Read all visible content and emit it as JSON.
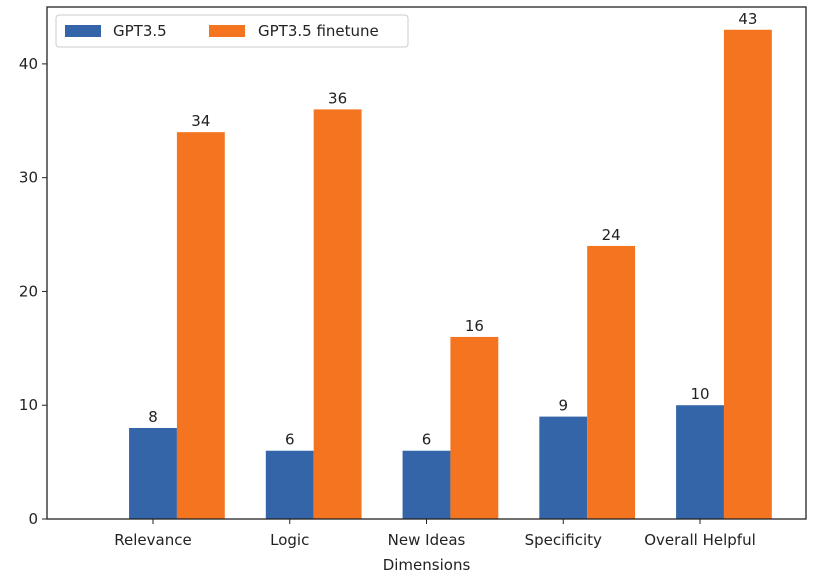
{
  "chart_data": {
    "type": "bar",
    "title": "",
    "xlabel": "Dimensions",
    "ylabel": "",
    "categories": [
      "Relevance",
      "Logic",
      "New Ideas",
      "Specificity",
      "Overall Helpful"
    ],
    "series": [
      {
        "name": "GPT3.5",
        "values": [
          8,
          6,
          6,
          9,
          10
        ],
        "color": "#3465a8"
      },
      {
        "name": "GPT3.5 finetune",
        "values": [
          34,
          36,
          16,
          24,
          43
        ],
        "color": "#f47420"
      }
    ],
    "ylim": [
      0,
      45
    ],
    "yticks": [
      0,
      10,
      20,
      30,
      40
    ],
    "grid": false,
    "legend_position": "top-left"
  }
}
